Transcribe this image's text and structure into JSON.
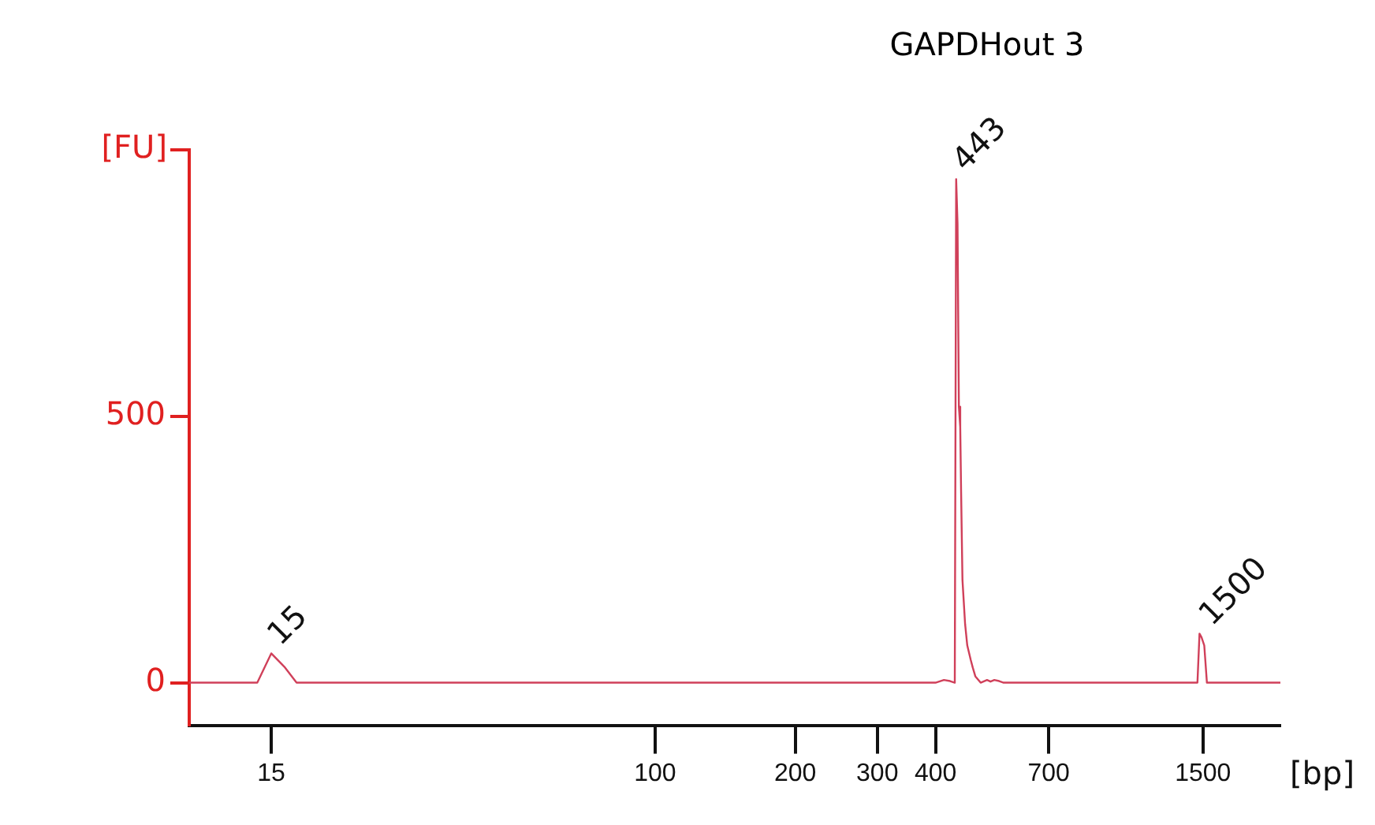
{
  "chart_data": {
    "type": "line",
    "title": "GAPDHout 3",
    "xlabel": "[bp]",
    "ylabel": "[FU]",
    "log": "x",
    "grid": false,
    "legend": false,
    "marker": "none",
    "line_style": "solid",
    "x": [
      10,
      14,
      15,
      16,
      17,
      400,
      417,
      430,
      440,
      443,
      446,
      449,
      452,
      454,
      457,
      463,
      468,
      476,
      481,
      487,
      500,
      516,
      525,
      535,
      548,
      560,
      1460,
      1475,
      1490,
      1510,
      1530,
      2200
    ],
    "series": [
      {
        "color": "#d0405a",
        "values": [
          0,
          0,
          55,
          30,
          0,
          0,
          5,
          3,
          0,
          945,
          862,
          518,
          480,
          356,
          193,
          110,
          70,
          43,
          28,
          12,
          0,
          5,
          2,
          5,
          3,
          0,
          0,
          92,
          85,
          70,
          0,
          0
        ]
      }
    ],
    "xlim": [
      10,
      2200
    ],
    "xticks": [
      15,
      100,
      200,
      300,
      400,
      700,
      1500
    ],
    "ylim": [
      -80,
      1000
    ],
    "yticks": [
      0,
      500,
      {
        "value": 1000,
        "label": null
      }
    ],
    "annotations": [
      {
        "text": "15",
        "x": 15,
        "y": 55
      },
      {
        "text": "443",
        "x": 443,
        "y": 945
      },
      {
        "text": "1500",
        "x": 1500,
        "y": 92
      }
    ]
  }
}
